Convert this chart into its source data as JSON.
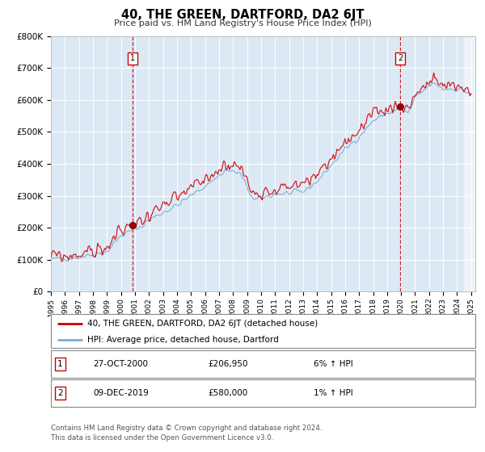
{
  "title": "40, THE GREEN, DARTFORD, DA2 6JT",
  "subtitle": "Price paid vs. HM Land Registry's House Price Index (HPI)",
  "background_color": "#ffffff",
  "plot_bg_color": "#dce9f5",
  "red_line_color": "#cc0000",
  "blue_line_color": "#7aadd4",
  "dashed_line_color": "#cc0000",
  "marker_color": "#990000",
  "ylim": [
    0,
    800000
  ],
  "yticks": [
    0,
    100000,
    200000,
    300000,
    400000,
    500000,
    600000,
    700000,
    800000
  ],
  "ytick_labels": [
    "£0",
    "£100K",
    "£200K",
    "£300K",
    "£400K",
    "£500K",
    "£600K",
    "£700K",
    "£800K"
  ],
  "sale1_date": "27-OCT-2000",
  "sale1_price": 206950,
  "sale1_price_str": "£206,950",
  "sale1_hpi": "6% ↑ HPI",
  "sale1_label": "1",
  "sale2_date": "09-DEC-2019",
  "sale2_price": 580000,
  "sale2_price_str": "£580,000",
  "sale2_hpi": "1% ↑ HPI",
  "sale2_label": "2",
  "legend_line1": "40, THE GREEN, DARTFORD, DA2 6JT (detached house)",
  "legend_line2": "HPI: Average price, detached house, Dartford",
  "footer_line1": "Contains HM Land Registry data © Crown copyright and database right 2024.",
  "footer_line2": "This data is licensed under the Open Government Licence v3.0.",
  "x_start_year": 1995,
  "x_end_year": 2025,
  "sale1_x": 2000.82,
  "sale2_x": 2019.94
}
